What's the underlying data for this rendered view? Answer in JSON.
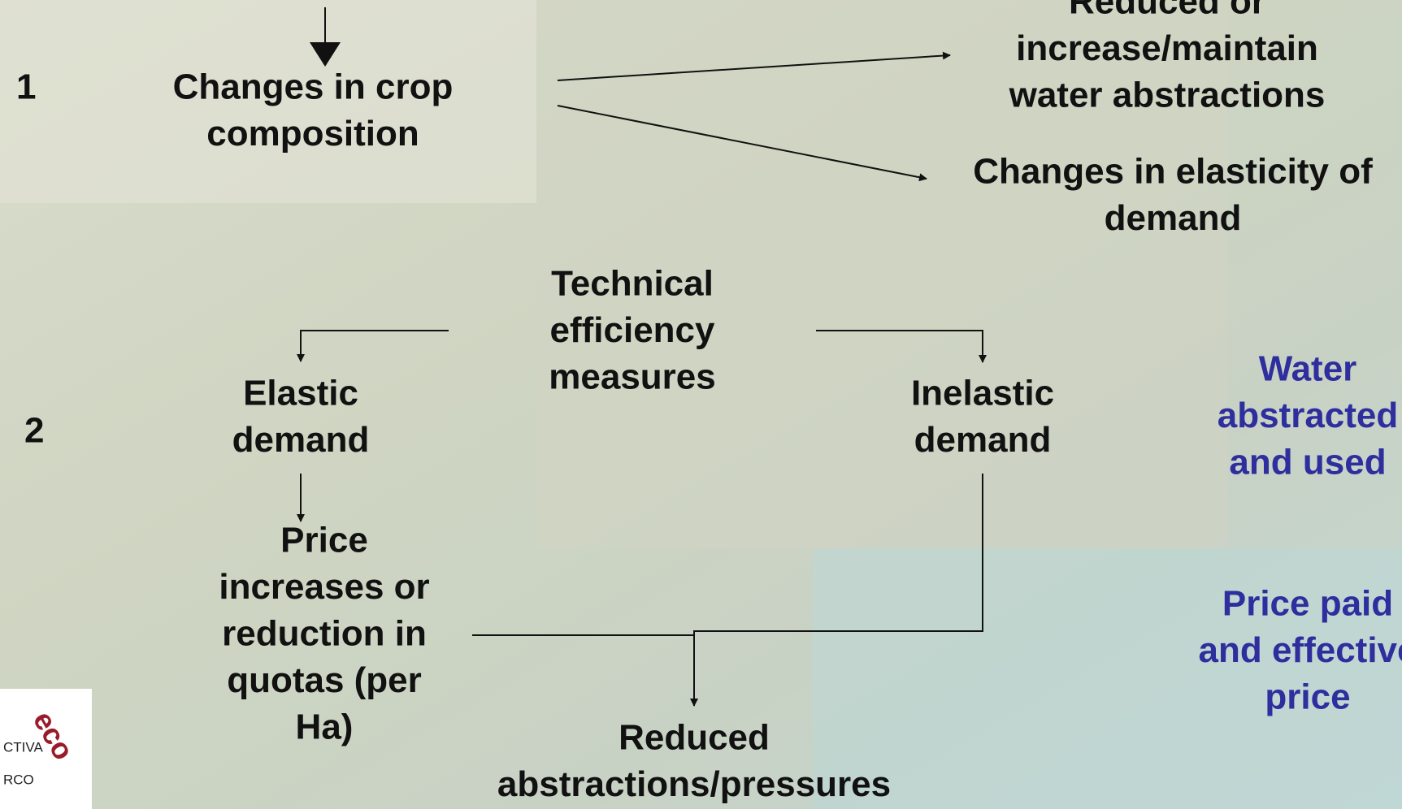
{
  "row_labels": [
    "1",
    "2"
  ],
  "nodes": [
    {
      "lines": [
        "Changes in crop",
        "composition"
      ]
    },
    {
      "lines": [
        "Reduced or",
        "increase/maintain",
        "water abstractions"
      ]
    },
    {
      "lines": [
        "Changes in elasticity of",
        "demand"
      ]
    },
    {
      "lines": [
        "Technical",
        "efficiency",
        "measures"
      ]
    },
    {
      "lines": [
        "Elastic",
        "demand"
      ]
    },
    {
      "lines": [
        "Inelastic",
        "demand"
      ]
    },
    {
      "lines": [
        "Price",
        "increases or",
        "reduction in",
        "quotas (per",
        "Ha)"
      ]
    },
    {
      "lines": [
        "Reduced",
        "abstractions/pressures"
      ]
    }
  ],
  "side_notes": [
    {
      "lines": [
        "Water",
        "abstracted",
        "and used"
      ]
    },
    {
      "lines": [
        "Price paid",
        "and effective",
        "price"
      ]
    }
  ],
  "logo": {
    "lines": [
      "CTIVA",
      "RCO"
    ],
    "word": "eco"
  }
}
